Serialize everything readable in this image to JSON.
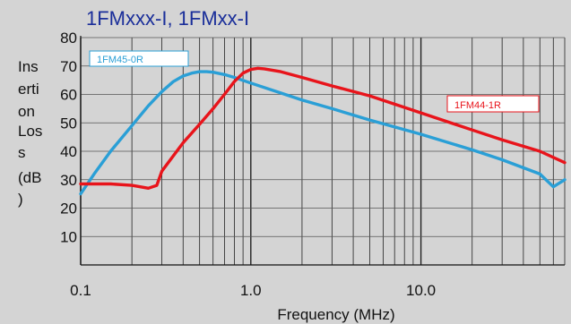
{
  "chart_data": {
    "type": "line",
    "title": "1FMxxx-I, 1FMxx-I",
    "xlabel": "Frequency (MHz)",
    "ylabel_lines": [
      "Ins",
      "erti",
      "on",
      "Los",
      "s",
      "(dB",
      ")"
    ],
    "x_scale": "log",
    "xlim": [
      0.1,
      70
    ],
    "ylim": [
      0,
      80
    ],
    "x_ticks": [
      {
        "value": 0.1,
        "label": "0.1"
      },
      {
        "value": 1,
        "label": "1.0"
      },
      {
        "value": 10,
        "label": "10.0"
      }
    ],
    "y_ticks": [
      {
        "value": 10,
        "label": "10"
      },
      {
        "value": 20,
        "label": "20"
      },
      {
        "value": 30,
        "label": "30"
      },
      {
        "value": 40,
        "label": "40"
      },
      {
        "value": 50,
        "label": "50"
      },
      {
        "value": 60,
        "label": "60"
      },
      {
        "value": 70,
        "label": "70"
      },
      {
        "value": 80,
        "label": "80"
      }
    ],
    "grid": true,
    "series": [
      {
        "name": "1FM45-0R",
        "color": "#2a9fd6",
        "x": [
          0.1,
          0.12,
          0.15,
          0.2,
          0.25,
          0.3,
          0.35,
          0.4,
          0.45,
          0.5,
          0.55,
          0.6,
          0.7,
          0.8,
          1.0,
          1.5,
          2.0,
          3.0,
          5.0,
          10,
          20,
          30,
          50,
          60,
          70
        ],
        "y": [
          25,
          32,
          40,
          49,
          56,
          61,
          64.5,
          66.5,
          67.5,
          68,
          68,
          67.8,
          67,
          66,
          64,
          60.5,
          58,
          55,
          51,
          46,
          40.5,
          37,
          32,
          27.5,
          30
        ]
      },
      {
        "name": "1FM44-1R",
        "color": "#e8141b",
        "x": [
          0.1,
          0.15,
          0.2,
          0.25,
          0.28,
          0.3,
          0.4,
          0.5,
          0.6,
          0.7,
          0.8,
          0.9,
          1.0,
          1.1,
          1.2,
          1.5,
          2.0,
          3.0,
          5.0,
          10,
          20,
          30,
          50,
          70
        ],
        "y": [
          28.5,
          28.5,
          28,
          27,
          28,
          33,
          43,
          49.5,
          55,
          60,
          64.5,
          67.5,
          68.8,
          69.2,
          69,
          68,
          66,
          63,
          59.5,
          53.5,
          47.5,
          44,
          40,
          36
        ]
      }
    ],
    "legend": [
      {
        "label": "1FM45-0R",
        "color": "#2a9fd6"
      },
      {
        "label": "1FM44-1R",
        "color": "#e8141b"
      }
    ]
  }
}
